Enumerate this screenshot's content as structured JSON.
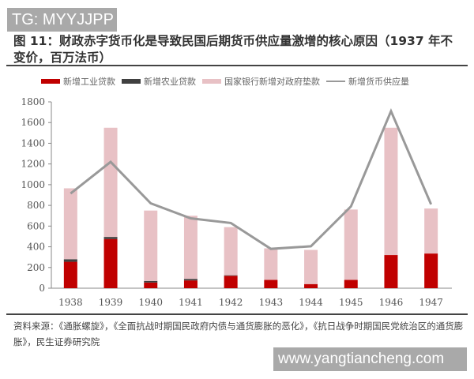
{
  "watermark_top": "TG: MYYJJPP",
  "watermark_bottom": "www.yangtiancheng.com",
  "source": "资料来源：《通胀螺旋》，《全面抗战时期国民政府内债与通货膨胀的恶化》，《抗日战争时期国民党统治区的通货膨胀》，民生证券研究院",
  "chart_data": {
    "type": "bar",
    "title": "图 11：财政赤字货币化是导致民国后期货币供应量激增的核心原因（1937 年不变价，百万法币）",
    "categories": [
      "1938",
      "1939",
      "1940",
      "1941",
      "1942",
      "1943",
      "1944",
      "1945",
      "1946",
      "1947"
    ],
    "ylim": [
      0,
      1800
    ],
    "yticks": [
      "0",
      "200",
      "400",
      "600",
      "800",
      "1000",
      "1200",
      "1400",
      "1600",
      "1800"
    ],
    "grid": false,
    "legend_position": "top",
    "stacked": true,
    "series": [
      {
        "name": "新增工业贷款",
        "kind": "bar",
        "color": "#c00000",
        "values": [
          255,
          475,
          55,
          75,
          120,
          80,
          40,
          80,
          320,
          335
        ]
      },
      {
        "name": "新增农业贷款",
        "kind": "bar",
        "color": "#404040",
        "values": [
          25,
          20,
          15,
          15,
          5,
          0,
          0,
          0,
          0,
          0
        ]
      },
      {
        "name": "国家银行新增对政府垫款",
        "kind": "bar",
        "color": "#e8c1c5",
        "values": [
          685,
          1055,
          680,
          610,
          465,
          305,
          330,
          680,
          1230,
          435
        ]
      },
      {
        "name": "新增货币供应量",
        "kind": "line",
        "color": "#999999",
        "values": [
          915,
          1220,
          820,
          675,
          630,
          380,
          405,
          790,
          1710,
          810
        ]
      }
    ]
  }
}
